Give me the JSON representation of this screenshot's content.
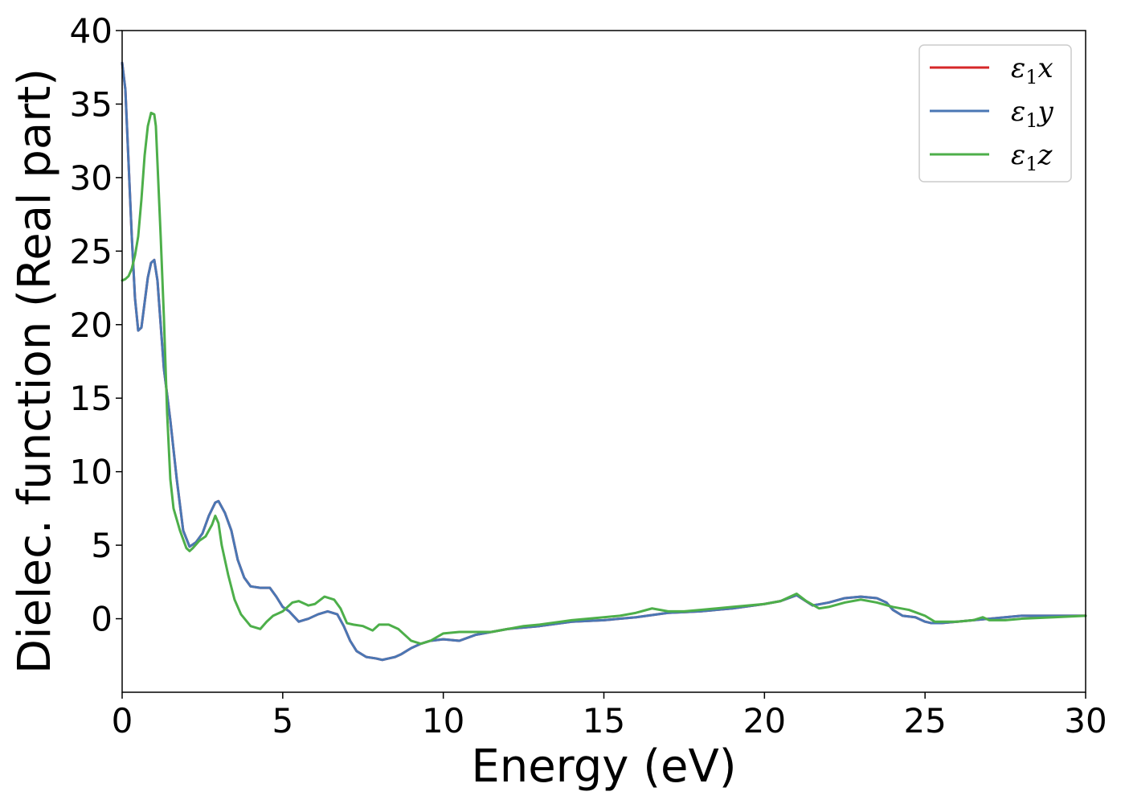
{
  "chart_data": {
    "type": "line",
    "title": "",
    "xlabel": "Energy (eV)",
    "ylabel": "Dielec. function (Real part)",
    "xlim": [
      0,
      30
    ],
    "ylim": [
      -5,
      40
    ],
    "xticks": [
      0,
      5,
      10,
      15,
      20,
      25,
      30
    ],
    "yticks": [
      0,
      5,
      10,
      15,
      20,
      25,
      30,
      35,
      40
    ],
    "grid": false,
    "legend_position": "top-right",
    "series": [
      {
        "name": "ε1x",
        "legend": {
          "base": "ε",
          "sub": "1",
          "axis": "x"
        },
        "color": "#d62728",
        "x": [
          0,
          0.1,
          0.2,
          0.3,
          0.4,
          0.5,
          0.6,
          0.7,
          0.8,
          0.9,
          1.0,
          1.1,
          1.2,
          1.3,
          1.5,
          1.7,
          1.9,
          2.1,
          2.3,
          2.5,
          2.7,
          2.9,
          3.0,
          3.2,
          3.4,
          3.6,
          3.8,
          4.0,
          4.3,
          4.6,
          4.8,
          5.0,
          5.2,
          5.5,
          5.8,
          6.1,
          6.4,
          6.7,
          6.9,
          7.1,
          7.3,
          7.6,
          7.9,
          8.1,
          8.3,
          8.5,
          8.7,
          9.0,
          9.3,
          9.6,
          10.0,
          10.5,
          11.0,
          11.5,
          12.0,
          13.0,
          14.0,
          15.0,
          16.0,
          17.0,
          18.0,
          19.0,
          20.0,
          20.5,
          21.0,
          21.5,
          22.0,
          22.5,
          23.0,
          23.5,
          23.8,
          24.0,
          24.3,
          24.7,
          25.0,
          25.2,
          25.5,
          26.0,
          26.5,
          27.0,
          27.5,
          28.0,
          29.0,
          30.0
        ],
        "y": [
          37.8,
          36.0,
          31.0,
          26.0,
          21.8,
          19.6,
          19.8,
          21.5,
          23.2,
          24.2,
          24.4,
          23.0,
          20.0,
          17.0,
          13.5,
          9.5,
          6.0,
          4.9,
          5.2,
          5.8,
          7.0,
          7.9,
          8.0,
          7.2,
          6.0,
          4.0,
          2.8,
          2.2,
          2.1,
          2.1,
          1.5,
          0.8,
          0.5,
          -0.2,
          0.0,
          0.3,
          0.5,
          0.3,
          -0.5,
          -1.5,
          -2.2,
          -2.6,
          -2.7,
          -2.8,
          -2.7,
          -2.6,
          -2.4,
          -2.0,
          -1.7,
          -1.5,
          -1.4,
          -1.5,
          -1.1,
          -0.9,
          -0.7,
          -0.5,
          -0.2,
          -0.1,
          0.1,
          0.4,
          0.5,
          0.7,
          1.0,
          1.2,
          1.6,
          0.9,
          1.1,
          1.4,
          1.5,
          1.4,
          1.1,
          0.6,
          0.2,
          0.1,
          -0.2,
          -0.3,
          -0.3,
          -0.2,
          -0.1,
          0.0,
          0.1,
          0.2,
          0.2,
          0.2
        ]
      },
      {
        "name": "ε1y",
        "legend": {
          "base": "ε",
          "sub": "1",
          "axis": "y"
        },
        "color": "#4a77b4",
        "x": [
          0,
          0.1,
          0.2,
          0.3,
          0.4,
          0.5,
          0.6,
          0.7,
          0.8,
          0.9,
          1.0,
          1.1,
          1.2,
          1.3,
          1.5,
          1.7,
          1.9,
          2.1,
          2.3,
          2.5,
          2.7,
          2.9,
          3.0,
          3.2,
          3.4,
          3.6,
          3.8,
          4.0,
          4.3,
          4.6,
          4.8,
          5.0,
          5.2,
          5.5,
          5.8,
          6.1,
          6.4,
          6.7,
          6.9,
          7.1,
          7.3,
          7.6,
          7.9,
          8.1,
          8.3,
          8.5,
          8.7,
          9.0,
          9.3,
          9.6,
          10.0,
          10.5,
          11.0,
          11.5,
          12.0,
          13.0,
          14.0,
          15.0,
          16.0,
          17.0,
          18.0,
          19.0,
          20.0,
          20.5,
          21.0,
          21.5,
          22.0,
          22.5,
          23.0,
          23.5,
          23.8,
          24.0,
          24.3,
          24.7,
          25.0,
          25.2,
          25.5,
          26.0,
          26.5,
          27.0,
          27.5,
          28.0,
          29.0,
          30.0
        ],
        "y": [
          37.8,
          36.0,
          31.0,
          26.0,
          21.8,
          19.6,
          19.8,
          21.5,
          23.2,
          24.2,
          24.4,
          23.0,
          20.0,
          17.0,
          13.5,
          9.5,
          6.0,
          4.9,
          5.2,
          5.8,
          7.0,
          7.9,
          8.0,
          7.2,
          6.0,
          4.0,
          2.8,
          2.2,
          2.1,
          2.1,
          1.5,
          0.8,
          0.5,
          -0.2,
          0.0,
          0.3,
          0.5,
          0.3,
          -0.5,
          -1.5,
          -2.2,
          -2.6,
          -2.7,
          -2.8,
          -2.7,
          -2.6,
          -2.4,
          -2.0,
          -1.7,
          -1.5,
          -1.4,
          -1.5,
          -1.1,
          -0.9,
          -0.7,
          -0.5,
          -0.2,
          -0.1,
          0.1,
          0.4,
          0.5,
          0.7,
          1.0,
          1.2,
          1.6,
          0.9,
          1.1,
          1.4,
          1.5,
          1.4,
          1.1,
          0.6,
          0.2,
          0.1,
          -0.2,
          -0.3,
          -0.3,
          -0.2,
          -0.1,
          0.0,
          0.1,
          0.2,
          0.2,
          0.2
        ]
      },
      {
        "name": "ε1z",
        "legend": {
          "base": "ε",
          "sub": "1",
          "axis": "z"
        },
        "color": "#4daf4a",
        "x": [
          0,
          0.1,
          0.2,
          0.3,
          0.4,
          0.5,
          0.6,
          0.7,
          0.8,
          0.9,
          1.0,
          1.05,
          1.1,
          1.2,
          1.3,
          1.4,
          1.5,
          1.6,
          1.8,
          2.0,
          2.1,
          2.2,
          2.4,
          2.6,
          2.8,
          2.9,
          3.0,
          3.1,
          3.3,
          3.5,
          3.7,
          4.0,
          4.3,
          4.5,
          4.7,
          5.0,
          5.3,
          5.5,
          5.8,
          6.0,
          6.3,
          6.6,
          6.8,
          7.0,
          7.2,
          7.5,
          7.8,
          8.0,
          8.3,
          8.6,
          8.8,
          9.0,
          9.3,
          9.6,
          10.0,
          10.5,
          11.0,
          11.5,
          12.0,
          12.5,
          13.0,
          14.0,
          15.0,
          15.5,
          16.0,
          16.5,
          17.0,
          17.5,
          18.0,
          19.0,
          20.0,
          20.5,
          21.0,
          21.3,
          21.7,
          22.0,
          22.5,
          23.0,
          23.5,
          24.0,
          24.5,
          25.0,
          25.3,
          25.7,
          26.0,
          26.5,
          26.8,
          27.0,
          27.5,
          28.0,
          29.0,
          30.0
        ],
        "y": [
          23.0,
          23.1,
          23.3,
          23.8,
          24.7,
          26.0,
          28.5,
          31.5,
          33.5,
          34.4,
          34.3,
          33.5,
          31.0,
          26.0,
          20.5,
          14.0,
          9.5,
          7.5,
          6.0,
          4.8,
          4.6,
          4.8,
          5.3,
          5.6,
          6.4,
          7.0,
          6.5,
          5.0,
          3.0,
          1.3,
          0.3,
          -0.5,
          -0.7,
          -0.2,
          0.2,
          0.5,
          1.1,
          1.2,
          0.9,
          1.0,
          1.5,
          1.3,
          0.7,
          -0.3,
          -0.4,
          -0.5,
          -0.8,
          -0.4,
          -0.4,
          -0.7,
          -1.1,
          -1.5,
          -1.7,
          -1.5,
          -1.0,
          -0.9,
          -0.9,
          -0.9,
          -0.7,
          -0.5,
          -0.4,
          -0.1,
          0.1,
          0.2,
          0.4,
          0.7,
          0.5,
          0.5,
          0.6,
          0.8,
          1.0,
          1.2,
          1.7,
          1.2,
          0.7,
          0.8,
          1.1,
          1.3,
          1.1,
          0.8,
          0.6,
          0.2,
          -0.2,
          -0.2,
          -0.2,
          -0.1,
          0.1,
          -0.1,
          -0.1,
          0.0,
          0.1,
          0.2
        ]
      }
    ]
  }
}
